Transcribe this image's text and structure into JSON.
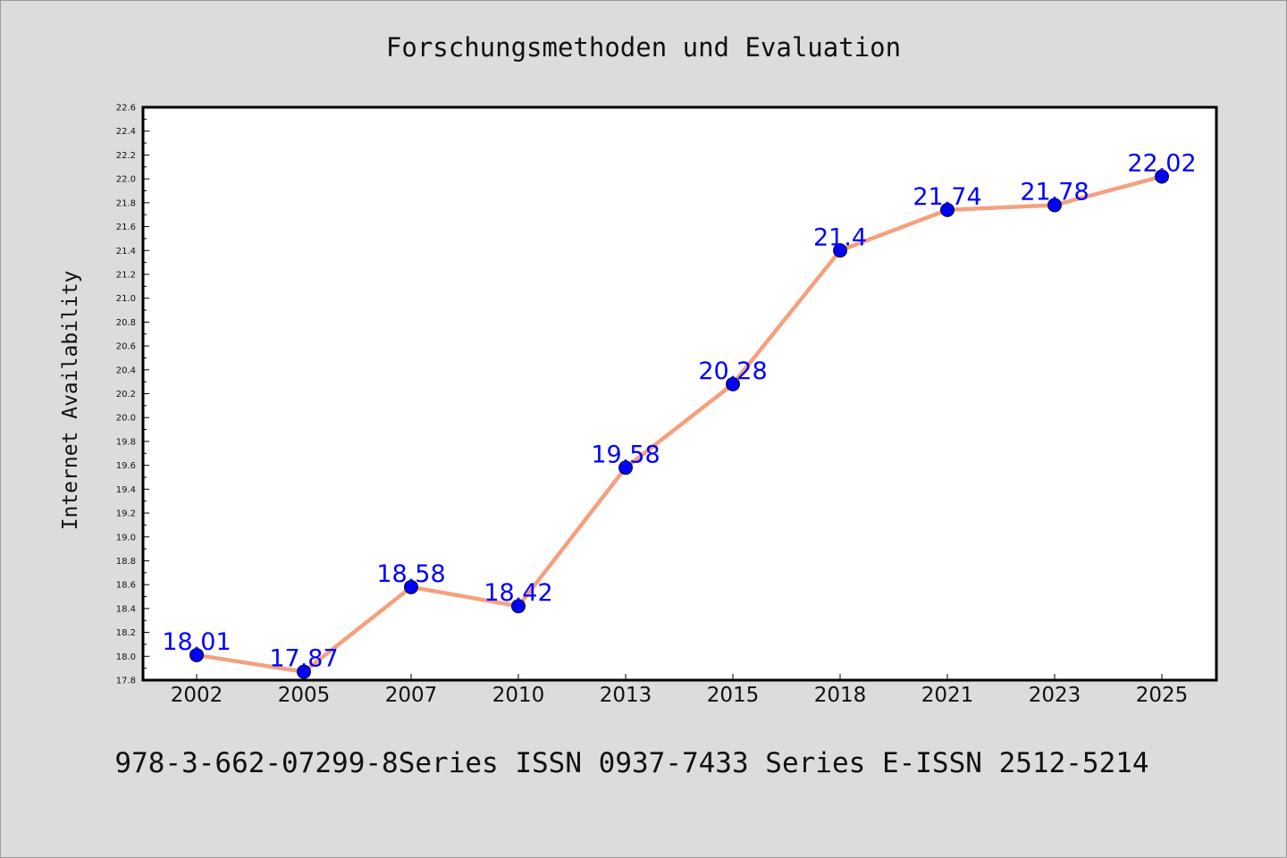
{
  "chart_data": {
    "type": "line",
    "title": "Forschungsmethoden und Evaluation",
    "ylabel": "Internet Availability",
    "xlabel": "",
    "categories": [
      "2002",
      "2005",
      "2007",
      "2010",
      "2013",
      "2015",
      "2018",
      "2021",
      "2023",
      "2025"
    ],
    "series": [
      {
        "values": [
          18.01,
          17.87,
          18.58,
          18.42,
          19.58,
          20.28,
          21.4,
          21.74,
          21.78,
          22.02
        ],
        "data_labels": [
          "18.01",
          "17.87",
          "18.58",
          "18.42",
          "19.58",
          "20.28",
          "21.4",
          "21.74",
          "21.78",
          "22.02"
        ]
      }
    ],
    "ylim": [
      17.8,
      22.6
    ],
    "y_ticks": [
      "17.8",
      "18.0",
      "18.2",
      "18.4",
      "18.6",
      "18.8",
      "19.0",
      "19.2",
      "19.4",
      "19.6",
      "19.8",
      "20.0",
      "20.2",
      "20.4",
      "20.6",
      "20.8",
      "21.0",
      "21.2",
      "21.4",
      "21.6",
      "21.8",
      "22.0",
      "22.2",
      "22.4",
      "22.6"
    ],
    "grid": false,
    "legend": "none",
    "footer": "978-3-662-07299-8Series ISSN 0937-7433 Series E-ISSN 2512-5214",
    "colors": {
      "line": "#f4a07f",
      "marker": "#0000ff",
      "data_label": "#0000ff",
      "plot_background": "#ffffff",
      "figure_background": "#dcdcdc",
      "axes": "#000000"
    }
  }
}
